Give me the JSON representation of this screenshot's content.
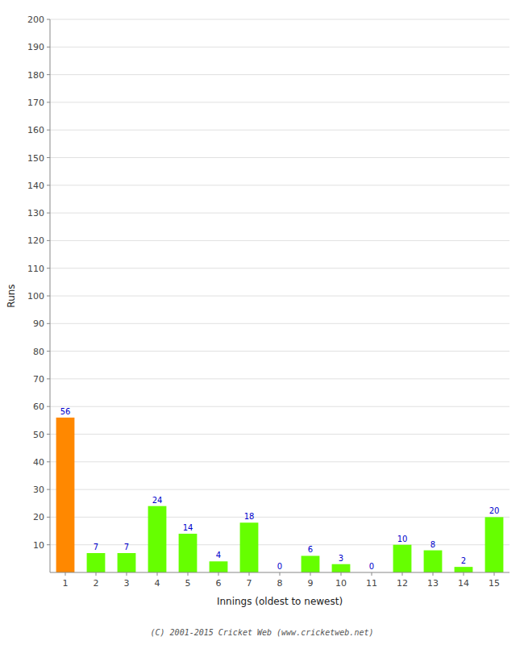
{
  "chart_data": {
    "type": "bar",
    "xlabel": "Innings (oldest to newest)",
    "ylabel": "Runs",
    "categories": [
      "1",
      "2",
      "3",
      "4",
      "5",
      "6",
      "7",
      "8",
      "9",
      "10",
      "11",
      "12",
      "13",
      "14",
      "15"
    ],
    "values": [
      56,
      7,
      7,
      24,
      14,
      4,
      18,
      0,
      6,
      3,
      0,
      10,
      8,
      2,
      20
    ],
    "colors": [
      "#ff8800",
      "#66ff00",
      "#66ff00",
      "#66ff00",
      "#66ff00",
      "#66ff00",
      "#66ff00",
      "#66ff00",
      "#66ff00",
      "#66ff00",
      "#66ff00",
      "#66ff00",
      "#66ff00",
      "#66ff00",
      "#66ff00"
    ],
    "ylim": [
      0,
      200
    ],
    "yticks": [
      10,
      20,
      30,
      40,
      50,
      60,
      70,
      80,
      90,
      100,
      110,
      120,
      130,
      140,
      150,
      160,
      170,
      180,
      190,
      200
    ],
    "grid": true,
    "data_labels": true,
    "annotations": [
      "(C) 2001-2015 Cricket Web (www.cricketweb.net)"
    ]
  }
}
